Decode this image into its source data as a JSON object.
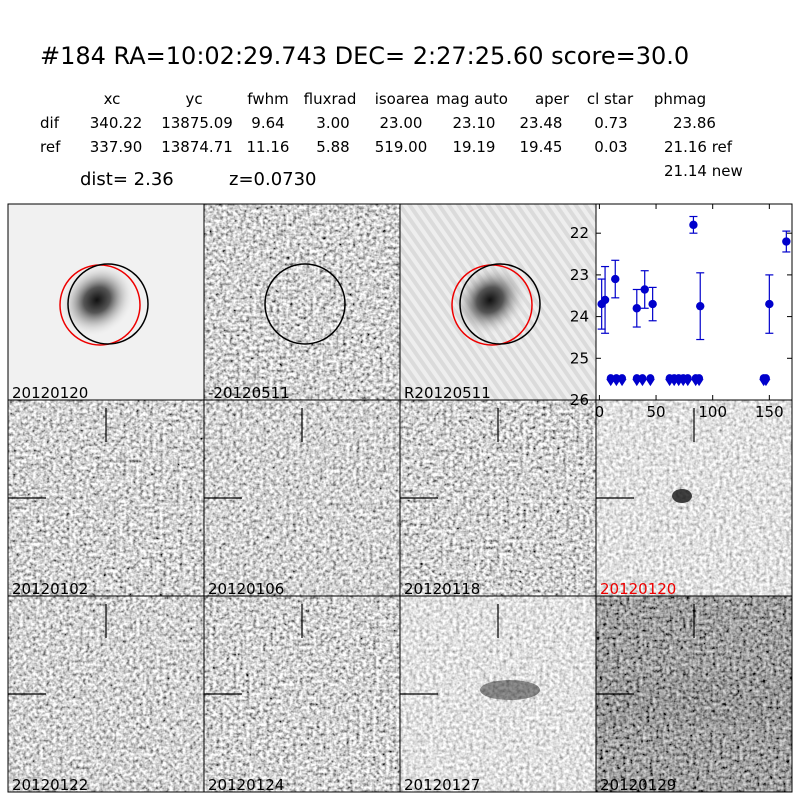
{
  "header": {
    "title": "#184   RA=10:02:29.743 DEC= 2:27:25.60       score=30.0"
  },
  "table": {
    "columns": [
      "xc",
      "yc",
      "fwhm",
      "fluxrad",
      "isoarea",
      "mag auto",
      "aper",
      "cl star",
      "phmag"
    ],
    "rows": [
      [
        "dif",
        "340.22",
        "13875.09",
        "9.64",
        "3.00",
        "23.00",
        "23.10",
        "23.48",
        "0.73",
        "23.86"
      ],
      [
        "ref",
        "337.90",
        "13874.71",
        "11.16",
        "5.88",
        "519.00",
        "19.19",
        "19.45",
        "0.03",
        "21.16 ref"
      ]
    ],
    "extra": "21.14 new"
  },
  "info": {
    "dist": "dist=  2.36",
    "z": "z=0.0730"
  },
  "panels": [
    "20120120",
    "-20120511",
    "R20120511",
    "20120102",
    "20120106",
    "20120118",
    "20120120",
    "20120122",
    "20120124",
    "20120127",
    "20120129"
  ],
  "chart_data": {
    "type": "scatter",
    "xlim": [
      -3,
      170
    ],
    "ylim": [
      21.3,
      26
    ],
    "invert_y": true,
    "xticks": [
      0,
      50,
      100,
      150
    ],
    "yticks": [
      22,
      23,
      24,
      25,
      26
    ],
    "series": [
      {
        "color": "#0000cc",
        "x": [
          2,
          5,
          14,
          33,
          40,
          47,
          83,
          89,
          150,
          165
        ],
        "values": [
          23.7,
          23.6,
          23.1,
          23.8,
          23.35,
          23.7,
          21.8,
          23.75,
          23.7,
          22.2
        ],
        "errors": [
          0.6,
          0.8,
          0.45,
          0.45,
          0.45,
          0.4,
          0.2,
          0.8,
          0.7,
          0.25
        ]
      },
      {
        "color": "#0000cc",
        "marker": "limit",
        "x": [
          10,
          15,
          20,
          33,
          38,
          45,
          62,
          66,
          70,
          74,
          78,
          85,
          88,
          145,
          147
        ],
        "values": [
          25.5,
          25.5,
          25.5,
          25.5,
          25.5,
          25.5,
          25.5,
          25.5,
          25.5,
          25.5,
          25.5,
          25.5,
          25.5,
          25.5,
          25.5
        ]
      }
    ]
  }
}
